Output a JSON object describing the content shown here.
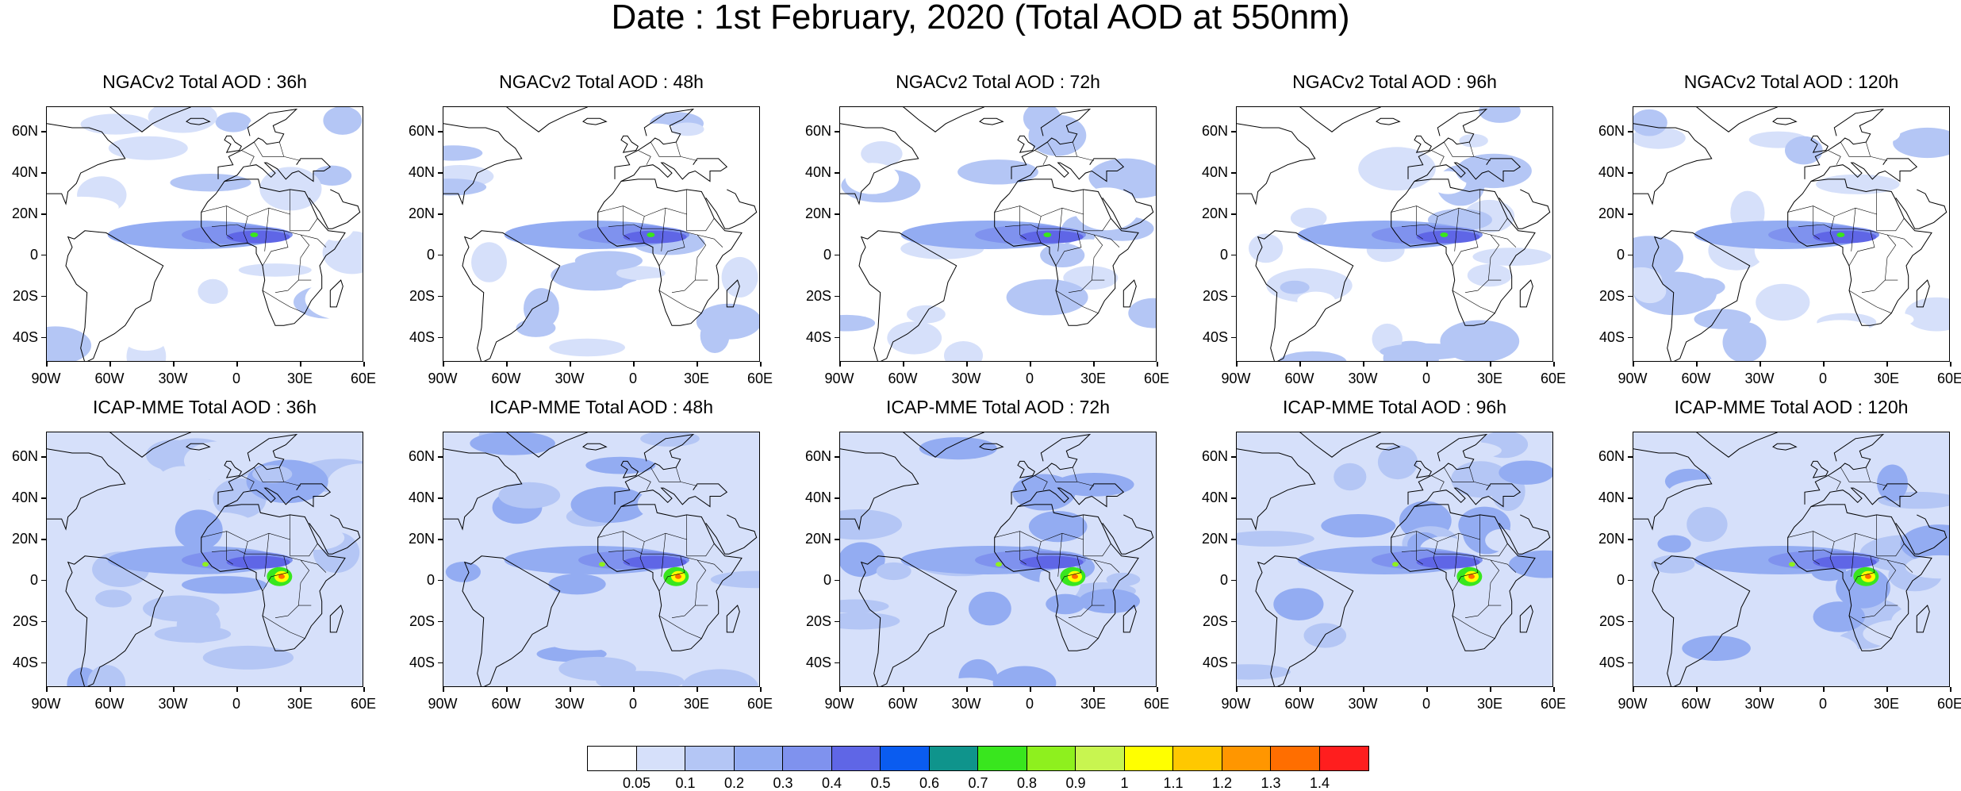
{
  "title": "Date : 1st February, 2020 (Total AOD at 550nm)",
  "lat_ticks": [
    "60N",
    "40N",
    "20N",
    "0",
    "20S",
    "40S"
  ],
  "lon_ticks": [
    "90W",
    "60W",
    "30W",
    "0",
    "30E",
    "60E"
  ],
  "panels": [
    {
      "title": "NGACv2 Total AOD : 36h",
      "model": "NGACv2",
      "lead": "36h"
    },
    {
      "title": "NGACv2 Total AOD : 48h",
      "model": "NGACv2",
      "lead": "48h"
    },
    {
      "title": "NGACv2 Total AOD : 72h",
      "model": "NGACv2",
      "lead": "72h"
    },
    {
      "title": "NGACv2 Total AOD : 96h",
      "model": "NGACv2",
      "lead": "96h"
    },
    {
      "title": "NGACv2 Total AOD : 120h",
      "model": "NGACv2",
      "lead": "120h"
    },
    {
      "title": "ICAP-MME Total AOD : 36h",
      "model": "ICAP-MME",
      "lead": "36h"
    },
    {
      "title": "ICAP-MME Total AOD : 48h",
      "model": "ICAP-MME",
      "lead": "48h"
    },
    {
      "title": "ICAP-MME Total AOD : 72h",
      "model": "ICAP-MME",
      "lead": "72h"
    },
    {
      "title": "ICAP-MME Total AOD : 96h",
      "model": "ICAP-MME",
      "lead": "96h"
    },
    {
      "title": "ICAP-MME Total AOD : 120h",
      "model": "ICAP-MME",
      "lead": "120h"
    }
  ],
  "colorbar": {
    "labels": [
      "0.05",
      "0.1",
      "0.2",
      "0.3",
      "0.4",
      "0.5",
      "0.6",
      "0.7",
      "0.8",
      "0.9",
      "1",
      "1.1",
      "1.2",
      "1.3",
      "1.4"
    ],
    "colors": [
      "#ffffff",
      "#d6e0fa",
      "#b4c6f5",
      "#93acf2",
      "#7f92ee",
      "#5f66e6",
      "#0a5cf0",
      "#0f948c",
      "#39e61e",
      "#8ef01e",
      "#c8f550",
      "#ffff00",
      "#ffc800",
      "#ff9600",
      "#ff6e00",
      "#ff1e1e"
    ]
  }
}
